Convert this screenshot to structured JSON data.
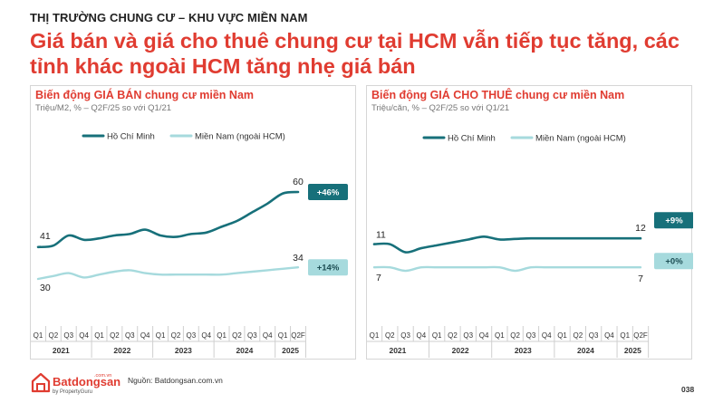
{
  "header": {
    "kicker": "THỊ TRƯỜNG CHUNG CƯ – KHU VỰC MIỀN NAM",
    "headline": "Giá bán và giá cho thuê chung cư tại HCM vẫn tiếp tục tăng, các tỉnh khác ngoài HCM tăng nhẹ giá bán"
  },
  "colors": {
    "hcm": "#17707a",
    "south": "#a6dadd",
    "accent": "#e03c31"
  },
  "footer": {
    "brand": "Batdongsan",
    "brand_domain": ".com.vn",
    "brand_sub": "by PropertyGuru",
    "source": "Nguồn: Batdongsan.com.vn",
    "page": "038"
  },
  "chart_data": [
    {
      "type": "line",
      "title": "Biến động GIÁ BÁN chung cư miền Nam",
      "subtitle": "Triệu/M2, % – Q2F/25 so với Q1/21",
      "quarters": [
        "Q1",
        "Q2",
        "Q3",
        "Q4",
        "Q1",
        "Q2",
        "Q3",
        "Q4",
        "Q1",
        "Q2",
        "Q3",
        "Q4",
        "Q1",
        "Q2",
        "Q3",
        "Q4",
        "Q1",
        "Q2F"
      ],
      "years": [
        "2021",
        "2022",
        "2023",
        "2024",
        "2025"
      ],
      "ylim": [
        20,
        70
      ],
      "series": [
        {
          "name": "Hồ Chí Minh",
          "values": [
            41,
            41.5,
            45,
            43.5,
            44,
            45,
            45.5,
            47,
            45,
            44.5,
            45.5,
            46,
            48,
            50,
            53,
            56,
            59.5,
            60
          ],
          "start_label": "41",
          "end_label": "60",
          "badge": "+46%"
        },
        {
          "name": "Miền Nam (ngoài HCM)",
          "values": [
            30,
            31,
            32,
            30.5,
            31.5,
            32.5,
            33,
            32,
            31.5,
            31.5,
            31.5,
            31.5,
            31.5,
            32,
            32.5,
            33,
            33.5,
            34
          ],
          "start_label": "30",
          "end_label": "34",
          "badge": "+14%"
        }
      ]
    },
    {
      "type": "line",
      "title": "Biến động GIÁ CHO THUÊ chung cư miền Nam",
      "subtitle": "Triệu/căn, % – Q2F/25 so với Q1/21",
      "quarters": [
        "Q1",
        "Q2",
        "Q3",
        "Q4",
        "Q1",
        "Q2",
        "Q3",
        "Q4",
        "Q1",
        "Q2",
        "Q3",
        "Q4",
        "Q1",
        "Q2",
        "Q3",
        "Q4",
        "Q1",
        "Q2F"
      ],
      "years": [
        "2021",
        "2022",
        "2023",
        "2024",
        "2025"
      ],
      "ylim": [
        0,
        25
      ],
      "series": [
        {
          "name": "Hồ Chí Minh",
          "values": [
            11,
            11,
            9.6,
            10.3,
            10.8,
            11.3,
            11.8,
            12.3,
            11.8,
            11.9,
            12,
            12,
            12,
            12,
            12,
            12,
            12,
            12
          ],
          "start_label": "11",
          "end_label": "12",
          "badge": "+9%"
        },
        {
          "name": "Miền Nam (ngoài HCM)",
          "values": [
            7,
            7,
            6.4,
            7,
            7,
            7,
            7,
            7,
            7,
            6.4,
            7,
            7,
            7,
            7,
            7,
            7,
            7,
            7
          ],
          "start_label": "7",
          "end_label": "7",
          "badge": "+0%"
        }
      ]
    }
  ]
}
